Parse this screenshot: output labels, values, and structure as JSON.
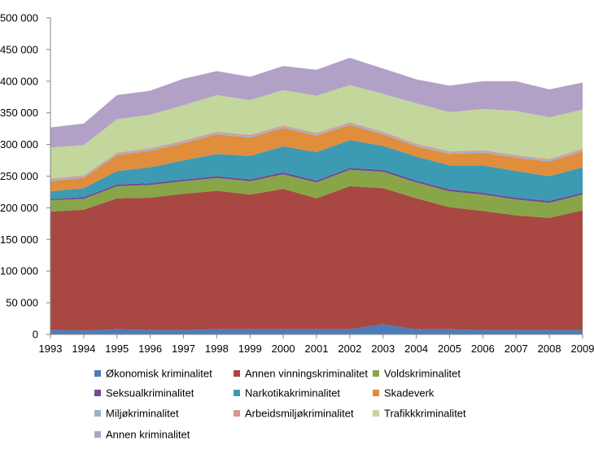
{
  "chart_data": {
    "type": "area",
    "stacked": true,
    "x": [
      1993,
      1994,
      1995,
      1996,
      1997,
      1998,
      1999,
      2000,
      2001,
      2002,
      2003,
      2004,
      2005,
      2006,
      2007,
      2008,
      2009
    ],
    "ylim": [
      0,
      500000
    ],
    "yticks": [
      "0",
      "50 000",
      "100 000",
      "150 000",
      "200 000",
      "250 000",
      "300 000",
      "350 000",
      "400 000",
      "450 000",
      "500 000"
    ],
    "xticks": [
      "1993",
      "1994",
      "1995",
      "1996",
      "1997",
      "1998",
      "1999",
      "2000",
      "2001",
      "2002",
      "2003",
      "2004",
      "2005",
      "2006",
      "2007",
      "2008",
      "2009"
    ],
    "grid": false,
    "legend_position": "bottom",
    "series": [
      {
        "name": "Økonomisk kriminalitet",
        "color": "#4a7ebb",
        "values": [
          7000,
          6000,
          8000,
          7000,
          7000,
          8000,
          8000,
          8000,
          8000,
          8000,
          16000,
          8000,
          8000,
          7000,
          7000,
          7000,
          7000
        ]
      },
      {
        "name": "Annen vinningskriminalitet",
        "color": "#a94743",
        "values": [
          187000,
          191000,
          207000,
          209000,
          215000,
          219000,
          213000,
          222000,
          207000,
          226000,
          215000,
          207000,
          193000,
          188000,
          181000,
          177000,
          189000
        ]
      },
      {
        "name": "Voldskriminalitet",
        "color": "#88a548",
        "values": [
          18000,
          17000,
          19000,
          20000,
          20000,
          20000,
          21000,
          23000,
          25000,
          26000,
          26000,
          25000,
          25000,
          26000,
          25000,
          24000,
          25000
        ]
      },
      {
        "name": "Seksualkriminalitet",
        "color": "#6e4c96",
        "values": [
          2000,
          3000,
          3000,
          3000,
          3000,
          3000,
          3000,
          3000,
          3000,
          3000,
          3000,
          3000,
          3000,
          3000,
          3000,
          3000,
          3000
        ]
      },
      {
        "name": "Narkotikakriminalitet",
        "color": "#3c9ab3",
        "values": [
          12000,
          14000,
          21000,
          25000,
          30000,
          35000,
          37000,
          41000,
          45000,
          44000,
          38000,
          38000,
          38000,
          43000,
          42000,
          39000,
          40000
        ]
      },
      {
        "name": "Skadeverk",
        "color": "#e08d3c",
        "values": [
          16000,
          16000,
          25000,
          26000,
          27000,
          31000,
          29000,
          29000,
          26000,
          24000,
          18000,
          16000,
          18000,
          20000,
          21000,
          23000,
          25000
        ]
      },
      {
        "name": "Miljøkriminalitet",
        "color": "#98b0d4",
        "values": [
          2000,
          2000,
          2000,
          2000,
          2000,
          2000,
          2000,
          2000,
          2000,
          2000,
          2000,
          2000,
          2000,
          2000,
          2000,
          2000,
          2000
        ]
      },
      {
        "name": "Arbeidsmiljøkriminalitet",
        "color": "#d99694",
        "values": [
          2000,
          2000,
          2000,
          2000,
          2000,
          2000,
          2000,
          2000,
          2000,
          2000,
          2000,
          2000,
          2000,
          2000,
          2000,
          2000,
          2000
        ]
      },
      {
        "name": "Trafikkkriminalitet",
        "color": "#c3d69b",
        "values": [
          49000,
          48000,
          53000,
          53000,
          56000,
          58000,
          55000,
          56000,
          59000,
          59000,
          60000,
          64000,
          62000,
          65000,
          70000,
          66000,
          62000
        ]
      },
      {
        "name": "Annen kriminalitet",
        "color": "#b2a1c7",
        "values": [
          32000,
          34000,
          38000,
          38000,
          42000,
          38000,
          37000,
          38000,
          41000,
          43000,
          40000,
          38000,
          42000,
          44000,
          47000,
          44000,
          43000
        ]
      }
    ]
  }
}
